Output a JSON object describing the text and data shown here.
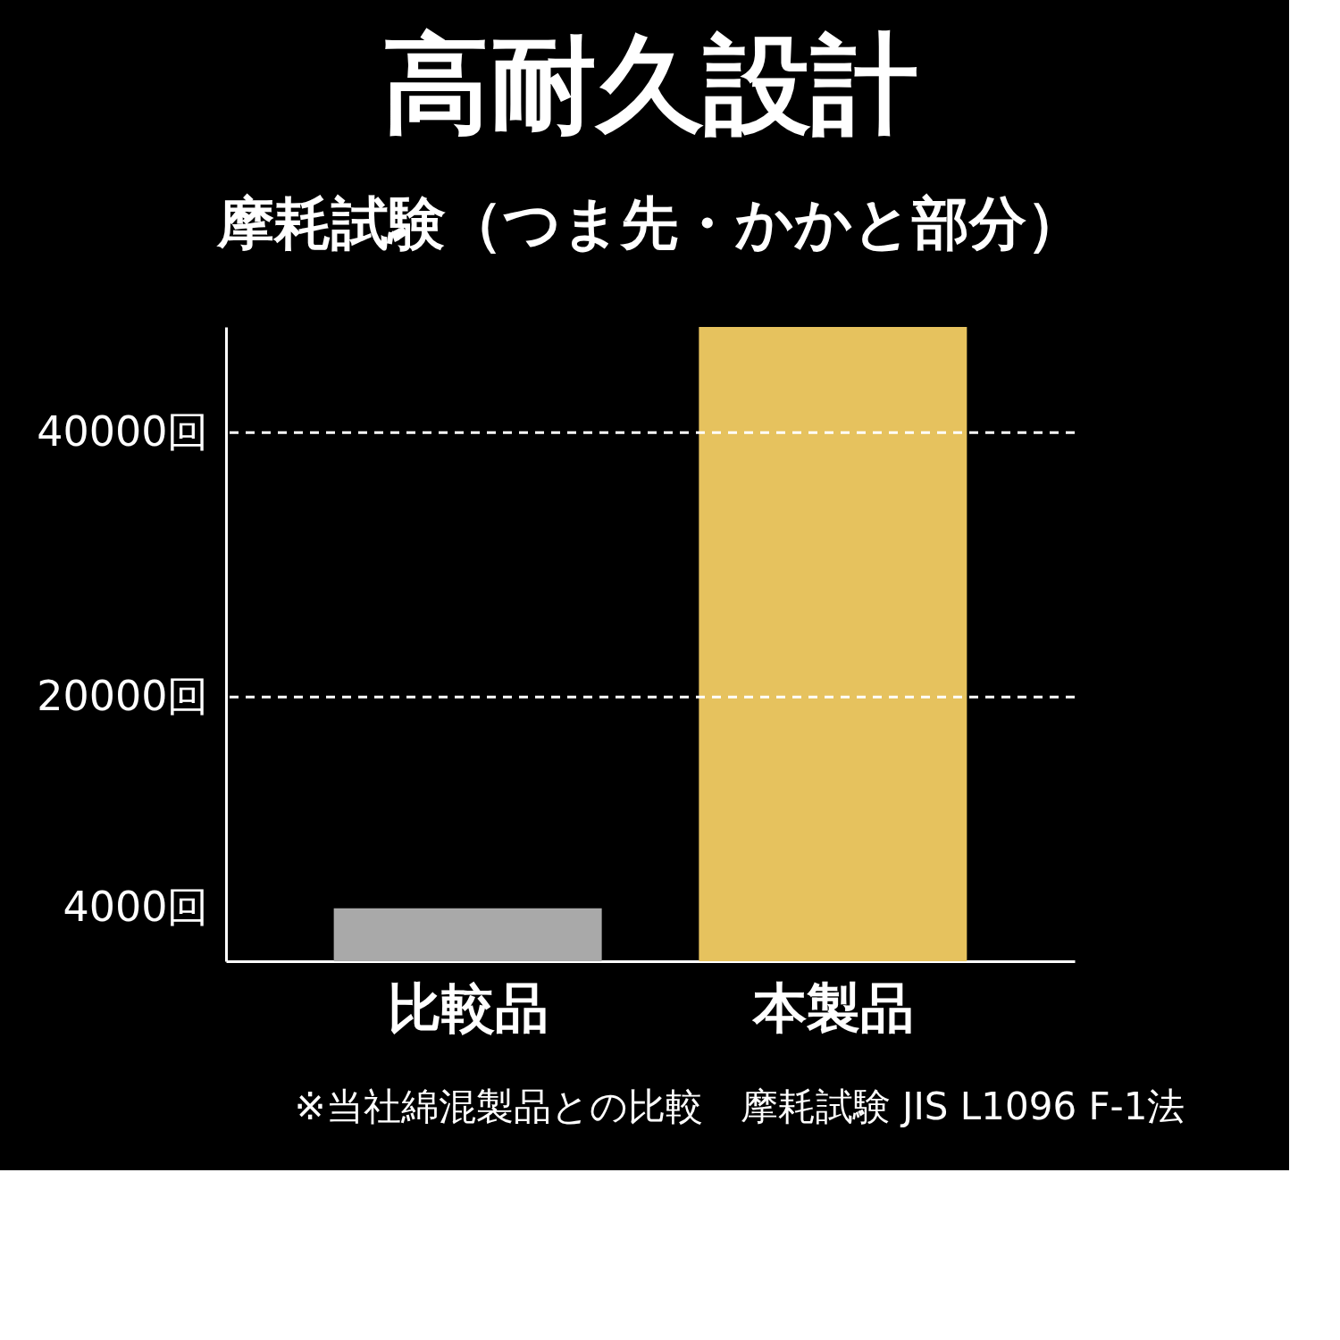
{
  "chart_data": {
    "type": "bar",
    "title": "高耐久設計",
    "subtitle": "摩耗試験（つま先・かかと部分）",
    "categories": [
      "比較品",
      "本製品"
    ],
    "values": [
      4000,
      48000
    ],
    "colors": [
      "#a9a9a9",
      "#e6c25e"
    ],
    "ylim": [
      0,
      48000
    ],
    "yticks": [
      {
        "value": 4000,
        "label": "4000回"
      },
      {
        "value": 20000,
        "label": "20000回"
      },
      {
        "value": 40000,
        "label": "40000回"
      }
    ],
    "ref_lines": [
      {
        "axis": "y",
        "value": 20000,
        "label": null,
        "color": "#ffffff",
        "line_style": "dashed"
      },
      {
        "axis": "y",
        "value": 40000,
        "label": null,
        "color": "#ffffff",
        "line_style": "dashed"
      }
    ],
    "grid": false,
    "annotations": [
      "※当社綿混製品との比較　摩耗試験 JIS L1096 F-1法"
    ]
  }
}
